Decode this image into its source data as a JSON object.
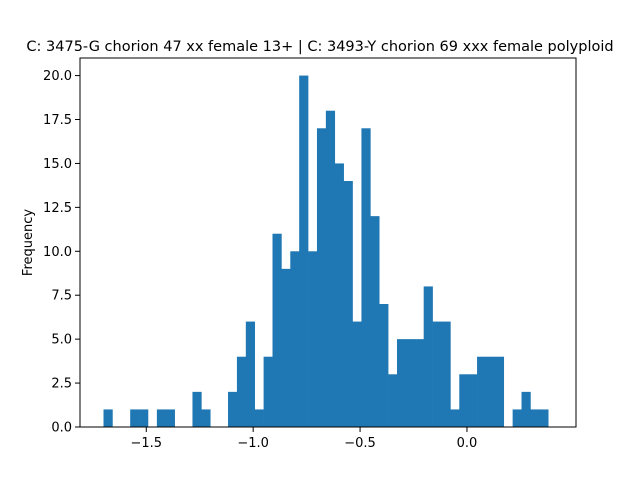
{
  "chart_data": {
    "type": "bar",
    "subtype": "histogram",
    "title": "C: 3475-G chorion 47 xx female 13+ | C: 3493-Y chorion 69 xxx female polyploid",
    "xlabel": "",
    "ylabel": "Frequency",
    "xlim": [
      -1.81,
      0.51
    ],
    "ylim": [
      0,
      21
    ],
    "xticks": [
      -1.5,
      -1.0,
      -0.5,
      0.0
    ],
    "xtick_labels": [
      "−1.5",
      "−1.0",
      "−0.5",
      "0.0"
    ],
    "yticks": [
      0,
      2.5,
      5,
      7.5,
      10,
      12.5,
      15,
      17.5,
      20
    ],
    "ytick_labels": [
      "0.0",
      "2.5",
      "5.0",
      "7.5",
      "10.0",
      "12.5",
      "15.0",
      "17.5",
      "20.0"
    ],
    "grid": false,
    "legend": "none",
    "color": "#1f77b4",
    "bin_start": -1.7,
    "bin_width": 0.0416,
    "counts": [
      1,
      0,
      0,
      1,
      1,
      0,
      1,
      1,
      0,
      0,
      2,
      1,
      0,
      0,
      2,
      4,
      6,
      1,
      4,
      11,
      9,
      10,
      20,
      10,
      17,
      18,
      15,
      14,
      6,
      17,
      12,
      7,
      3,
      5,
      5,
      5,
      8,
      6,
      6,
      1,
      3,
      3,
      4,
      4,
      4,
      0,
      1,
      2,
      1,
      1
    ]
  }
}
